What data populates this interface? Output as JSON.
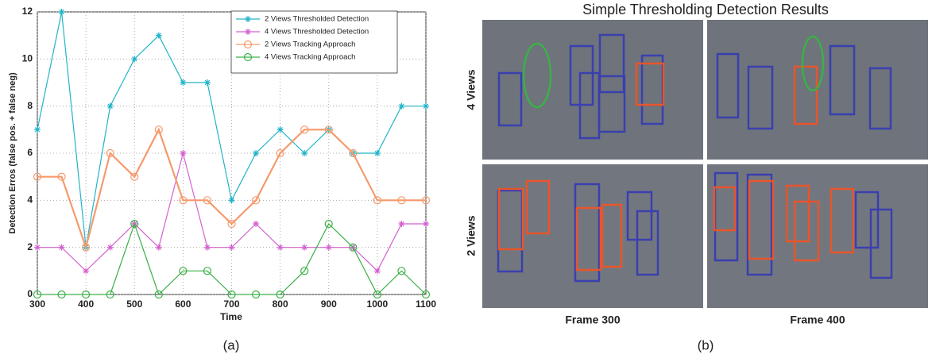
{
  "chart_data": {
    "type": "line",
    "x_label": "Time",
    "y_label": "Detection Erros (false pos. + false neg)",
    "x": [
      300,
      350,
      400,
      450,
      500,
      550,
      600,
      650,
      700,
      750,
      800,
      850,
      900,
      950,
      1000,
      1050,
      1100
    ],
    "series": [
      {
        "name": "2 Views Thresholded Detection",
        "color": "#22b4c8",
        "marker": "star",
        "values": [
          7,
          12,
          2,
          8,
          10,
          11,
          9,
          9,
          4,
          6,
          7,
          6,
          7,
          6,
          6,
          8,
          8
        ]
      },
      {
        "name": "4 Views Thresholded Detection",
        "color": "#d462cf",
        "marker": "star",
        "values": [
          2,
          2,
          1,
          2,
          3,
          2,
          6,
          2,
          2,
          3,
          2,
          2,
          2,
          2,
          1,
          3,
          3
        ]
      },
      {
        "name": "2 Views Tracking Approach",
        "color": "#f59a6c",
        "marker": "circle",
        "values": [
          5,
          5,
          2,
          6,
          5,
          7,
          4,
          4,
          3,
          4,
          6,
          7,
          7,
          6,
          4,
          4,
          4
        ]
      },
      {
        "name": "4 Views Tracking Approach",
        "color": "#3cb048",
        "marker": "circle",
        "values": [
          0,
          0,
          0,
          0,
          3,
          0,
          1,
          1,
          0,
          0,
          0,
          1,
          3,
          2,
          0,
          1,
          0
        ]
      }
    ],
    "xlim": [
      300,
      1100
    ],
    "xticks": [
      300,
      400,
      500,
      600,
      700,
      800,
      900,
      1000,
      1100
    ],
    "ylim": [
      0,
      12
    ],
    "yticks": [
      0,
      2,
      4,
      6,
      8,
      10,
      12
    ],
    "grid": true,
    "legend": "upper-right"
  },
  "panel_b": {
    "title": "Simple Thresholding Detection Results",
    "row_labels": [
      "4 Views",
      "2 Views"
    ],
    "column_labels": [
      "Frame 300",
      "Frame 400"
    ]
  },
  "captions": [
    "(a)",
    "(b)"
  ]
}
